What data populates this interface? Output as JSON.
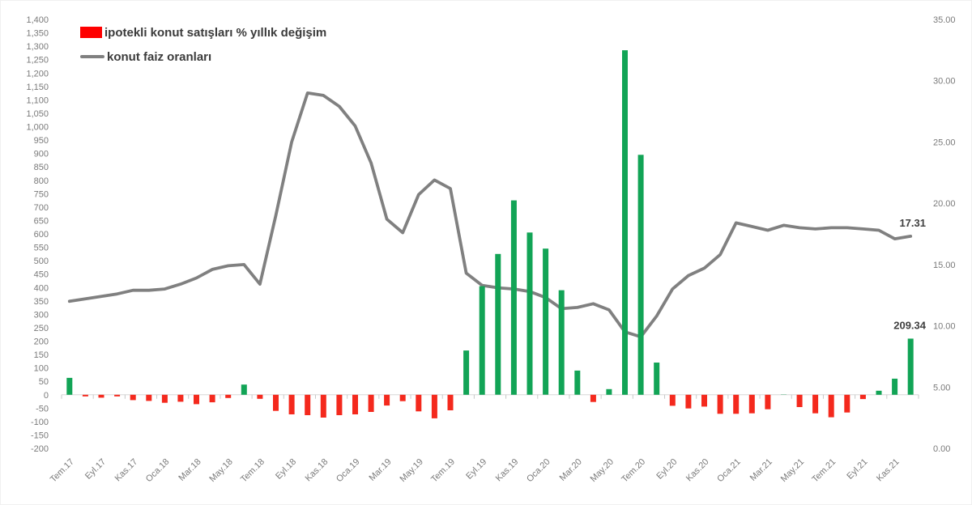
{
  "legend": {
    "items": [
      {
        "label": "ipotekli konut satışları % yıllık değişim",
        "swatch": "bar",
        "color": "#fe0000"
      },
      {
        "label": "konut faiz oranları",
        "swatch": "line",
        "color": "#808080"
      }
    ]
  },
  "chart_data": {
    "type": "combo-bar-line",
    "title": "",
    "x_label_every": 2,
    "x_labels": [
      "Tem.17",
      "Eyl.17",
      "Kas.17",
      "Oca.18",
      "Mar.18",
      "May.18",
      "Tem.18",
      "Eyl.18",
      "Kas.18",
      "Oca.19",
      "Mar.19",
      "May.19",
      "Tem.19",
      "Eyl.19",
      "Kas.19",
      "Oca.20",
      "Mar.20",
      "May.20",
      "Tem.20",
      "Eyl.20",
      "Kas.20",
      "Oca.21",
      "Mar.21",
      "May.21",
      "Tem.21",
      "Eyl.21",
      "Kas.21"
    ],
    "left_axis": {
      "min": -200,
      "max": 1400,
      "step": 50
    },
    "right_axis": {
      "min": 0,
      "max": 35,
      "step": 5
    },
    "grid": "off",
    "legend_position": "top-left",
    "series": [
      {
        "name": "ipotekli konut satışları % yıllık değişim",
        "type": "bar",
        "axis": "left",
        "color_positive": "#12a456",
        "color_negative": "#f4291d",
        "values": [
          63,
          -6,
          -11,
          -6,
          -20,
          -23,
          -30,
          -26,
          -35,
          -28,
          -12,
          38,
          -15,
          -60,
          -73,
          -76,
          -85,
          -76,
          -73,
          -64,
          -40,
          -24,
          -62,
          -88,
          -58,
          165,
          405,
          525,
          725,
          605,
          545,
          390,
          90,
          -27,
          21,
          1285,
          895,
          120,
          -41,
          -51,
          -44,
          -71,
          -71,
          -69,
          -54,
          1,
          -46,
          -69,
          -84,
          -66,
          -16,
          15,
          60,
          209.34
        ]
      },
      {
        "name": "konut faiz oranları",
        "type": "line",
        "axis": "right",
        "color": "#808080",
        "values": [
          12.0,
          12.2,
          12.4,
          12.6,
          12.9,
          12.9,
          13.0,
          13.4,
          13.9,
          14.6,
          14.9,
          15.0,
          13.4,
          19.0,
          25.0,
          29.0,
          28.8,
          27.9,
          26.3,
          23.3,
          18.7,
          17.6,
          20.7,
          21.9,
          21.2,
          14.3,
          13.3,
          13.1,
          13.0,
          12.8,
          12.3,
          11.4,
          11.5,
          11.8,
          11.3,
          9.5,
          9.1,
          10.8,
          13.0,
          14.1,
          14.7,
          15.8,
          18.4,
          18.1,
          17.8,
          18.2,
          18.0,
          17.9,
          18.0,
          18.0,
          17.9,
          17.8,
          17.1,
          17.31
        ]
      }
    ],
    "annotations": [
      {
        "text": "17.31",
        "attach": "line-end"
      },
      {
        "text": "209.34",
        "attach": "last-bar"
      }
    ]
  }
}
